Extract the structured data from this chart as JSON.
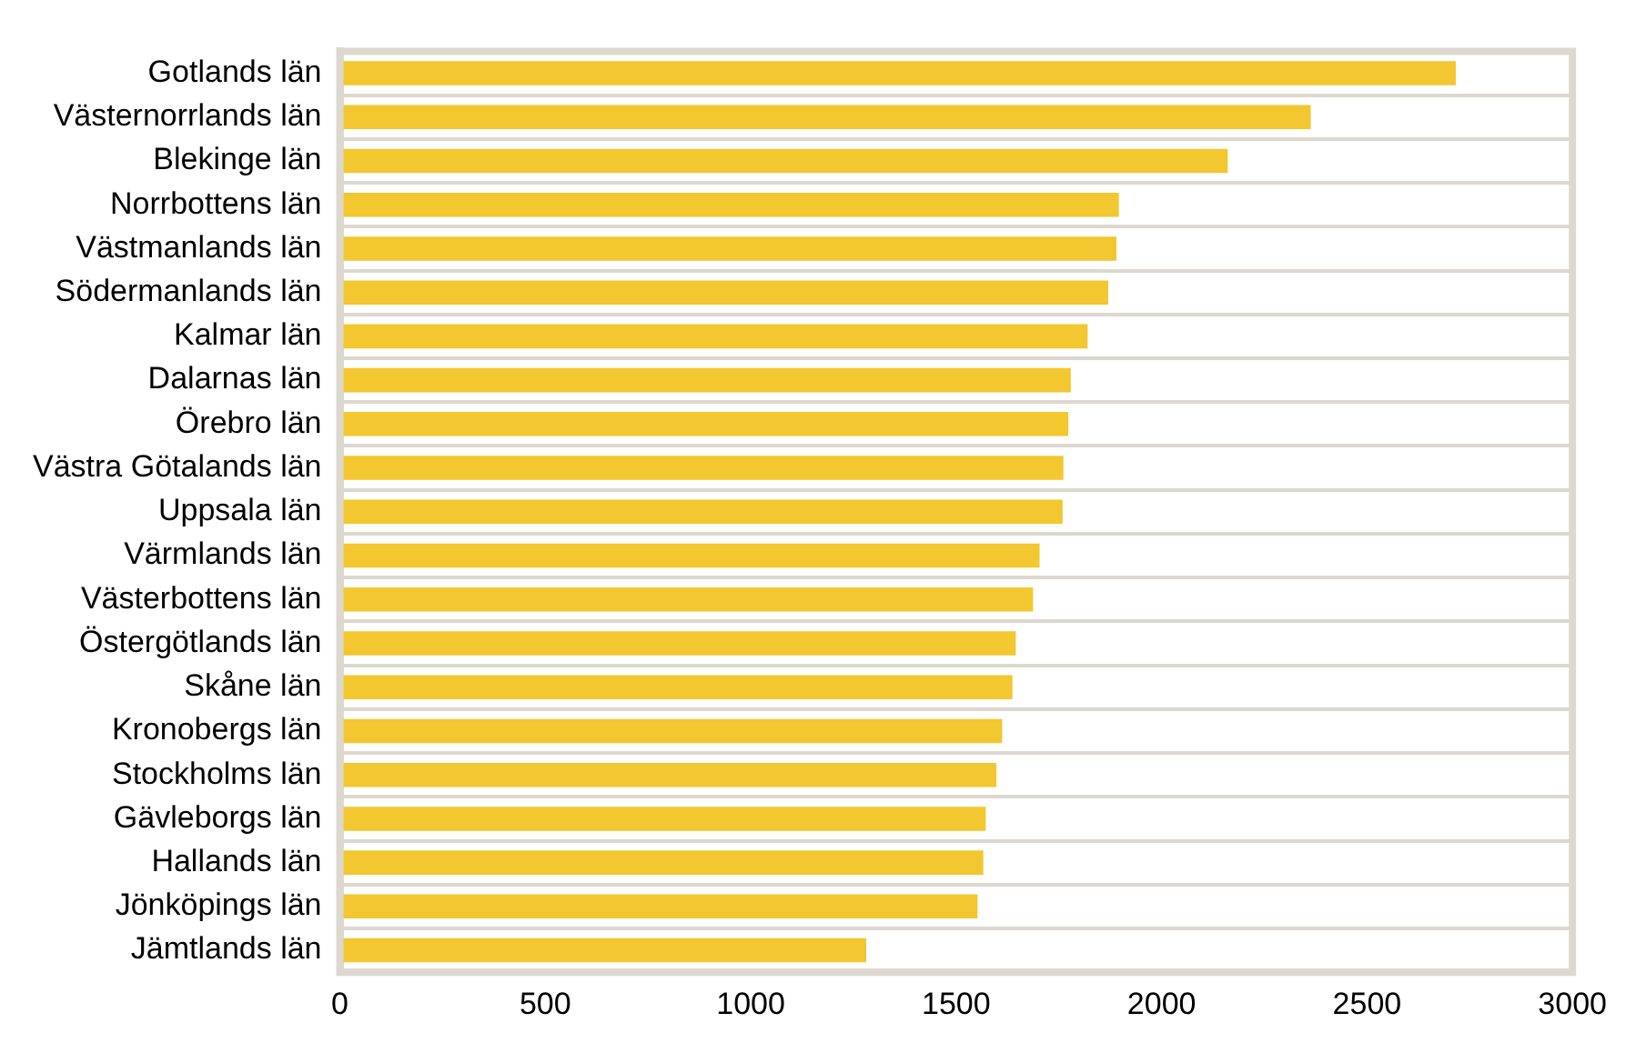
{
  "chart_data": {
    "type": "bar",
    "orientation": "horizontal",
    "categories": [
      "Gotlands län",
      "Västernorrlands län",
      "Blekinge län",
      "Norrbottens län",
      "Västmanlands län",
      "Södermanlands län",
      "Kalmar län",
      "Dalarnas län",
      "Örebro län",
      "Västra Götalands län",
      "Uppsala län",
      "Värmlands län",
      "Västerbottens län",
      "Östergötlands län",
      "Skåne län",
      "Kronobergs län",
      "Stockholms län",
      "Gävleborgs län",
      "Hallands län",
      "Jönköpings län",
      "Jämtlands län"
    ],
    "values": [
      2716,
      2363,
      2161,
      1896,
      1890,
      1870,
      1820,
      1779,
      1773,
      1761,
      1759,
      1703,
      1687,
      1645,
      1637,
      1612,
      1598,
      1572,
      1566,
      1552,
      1281
    ],
    "color": "#f2c72f",
    "xlim": [
      0,
      3000
    ],
    "xticks": [
      0,
      500,
      1000,
      1500,
      2000,
      2500,
      3000
    ],
    "grid": "y",
    "legend": false
  }
}
